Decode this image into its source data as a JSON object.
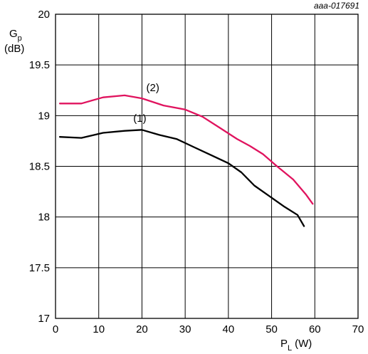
{
  "chart_data": {
    "type": "line",
    "figure_code": "aaa-017691",
    "xlabel": {
      "main": "P",
      "sub": "L",
      "unit": "(W)"
    },
    "ylabel": {
      "main": "G",
      "sub": "p",
      "unit": "(dB)"
    },
    "xlim": [
      0,
      70
    ],
    "ylim": [
      17,
      20
    ],
    "xticks": [
      0,
      10,
      20,
      30,
      40,
      50,
      60,
      70
    ],
    "yticks": [
      17,
      17.5,
      18,
      18.5,
      19,
      19.5,
      20
    ],
    "ytick_labels": [
      "17",
      "17.5",
      "18",
      "18.5",
      "19",
      "19.5",
      "20"
    ],
    "grid": true,
    "series": [
      {
        "name": "(1)",
        "color": "#000000",
        "x": [
          1,
          6,
          11,
          16,
          20,
          24,
          28,
          32,
          36,
          40,
          43,
          46,
          50,
          53,
          56,
          57.5
        ],
        "y": [
          18.79,
          18.78,
          18.83,
          18.85,
          18.86,
          18.81,
          18.77,
          18.69,
          18.61,
          18.53,
          18.44,
          18.31,
          18.19,
          18.1,
          18.02,
          17.91
        ]
      },
      {
        "name": "(2)",
        "color": "#e0135e",
        "x": [
          1,
          6,
          11,
          16,
          20,
          25,
          30,
          34,
          38,
          42,
          45,
          48,
          51,
          55,
          58,
          59.5
        ],
        "y": [
          19.12,
          19.12,
          19.18,
          19.2,
          19.17,
          19.1,
          19.06,
          18.99,
          18.88,
          18.77,
          18.7,
          18.62,
          18.51,
          18.37,
          18.22,
          18.13
        ]
      }
    ]
  }
}
